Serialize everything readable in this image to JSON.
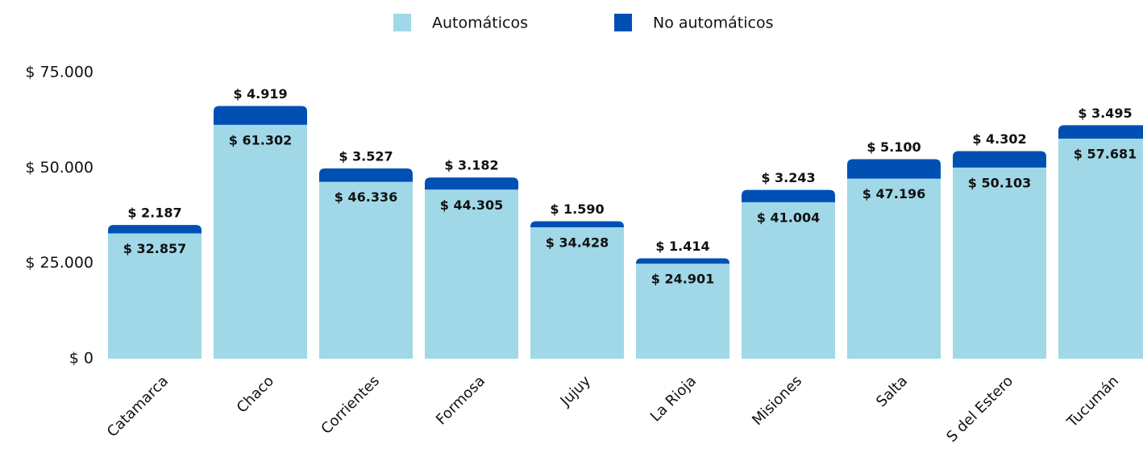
{
  "chart_data": {
    "type": "stacked_bar",
    "categories": [
      "Catamarca",
      "Chaco",
      "Corrientes",
      "Formosa",
      "Jujuy",
      "La Rioja",
      "Misiones",
      "Salta",
      "S del Estero",
      "Tucumán"
    ],
    "series": [
      {
        "name": "Automáticos",
        "color": "#a0d8e8",
        "values": [
          32857,
          61302,
          46336,
          44305,
          34428,
          24901,
          41004,
          47196,
          50103,
          57681
        ],
        "value_labels": [
          "$ 32.857",
          "$ 61.302",
          "$ 46.336",
          "$ 44.305",
          "$ 34.428",
          "$ 24.901",
          "$ 41.004",
          "$ 47.196",
          "$ 50.103",
          "$ 57.681"
        ]
      },
      {
        "name": "No automáticos",
        "color": "#0050b4",
        "values": [
          2187,
          4919,
          3527,
          3182,
          1590,
          1414,
          3243,
          5100,
          4302,
          3495
        ],
        "value_labels": [
          "$ 2.187",
          "$ 4.919",
          "$ 3.527",
          "$ 3.182",
          "$ 1.590",
          "$ 1.414",
          "$ 3.243",
          "$ 5.100",
          "$ 4.302",
          "$ 3.495"
        ]
      }
    ],
    "ylim": [
      0,
      75000
    ],
    "yticks": [
      {
        "value": 0,
        "label": "$ 0"
      },
      {
        "value": 25000,
        "label": "$ 25.000"
      },
      {
        "value": 50000,
        "label": "$ 50.000"
      },
      {
        "value": 75000,
        "label": "$ 75.000"
      }
    ],
    "grid": false,
    "legend": "top"
  }
}
